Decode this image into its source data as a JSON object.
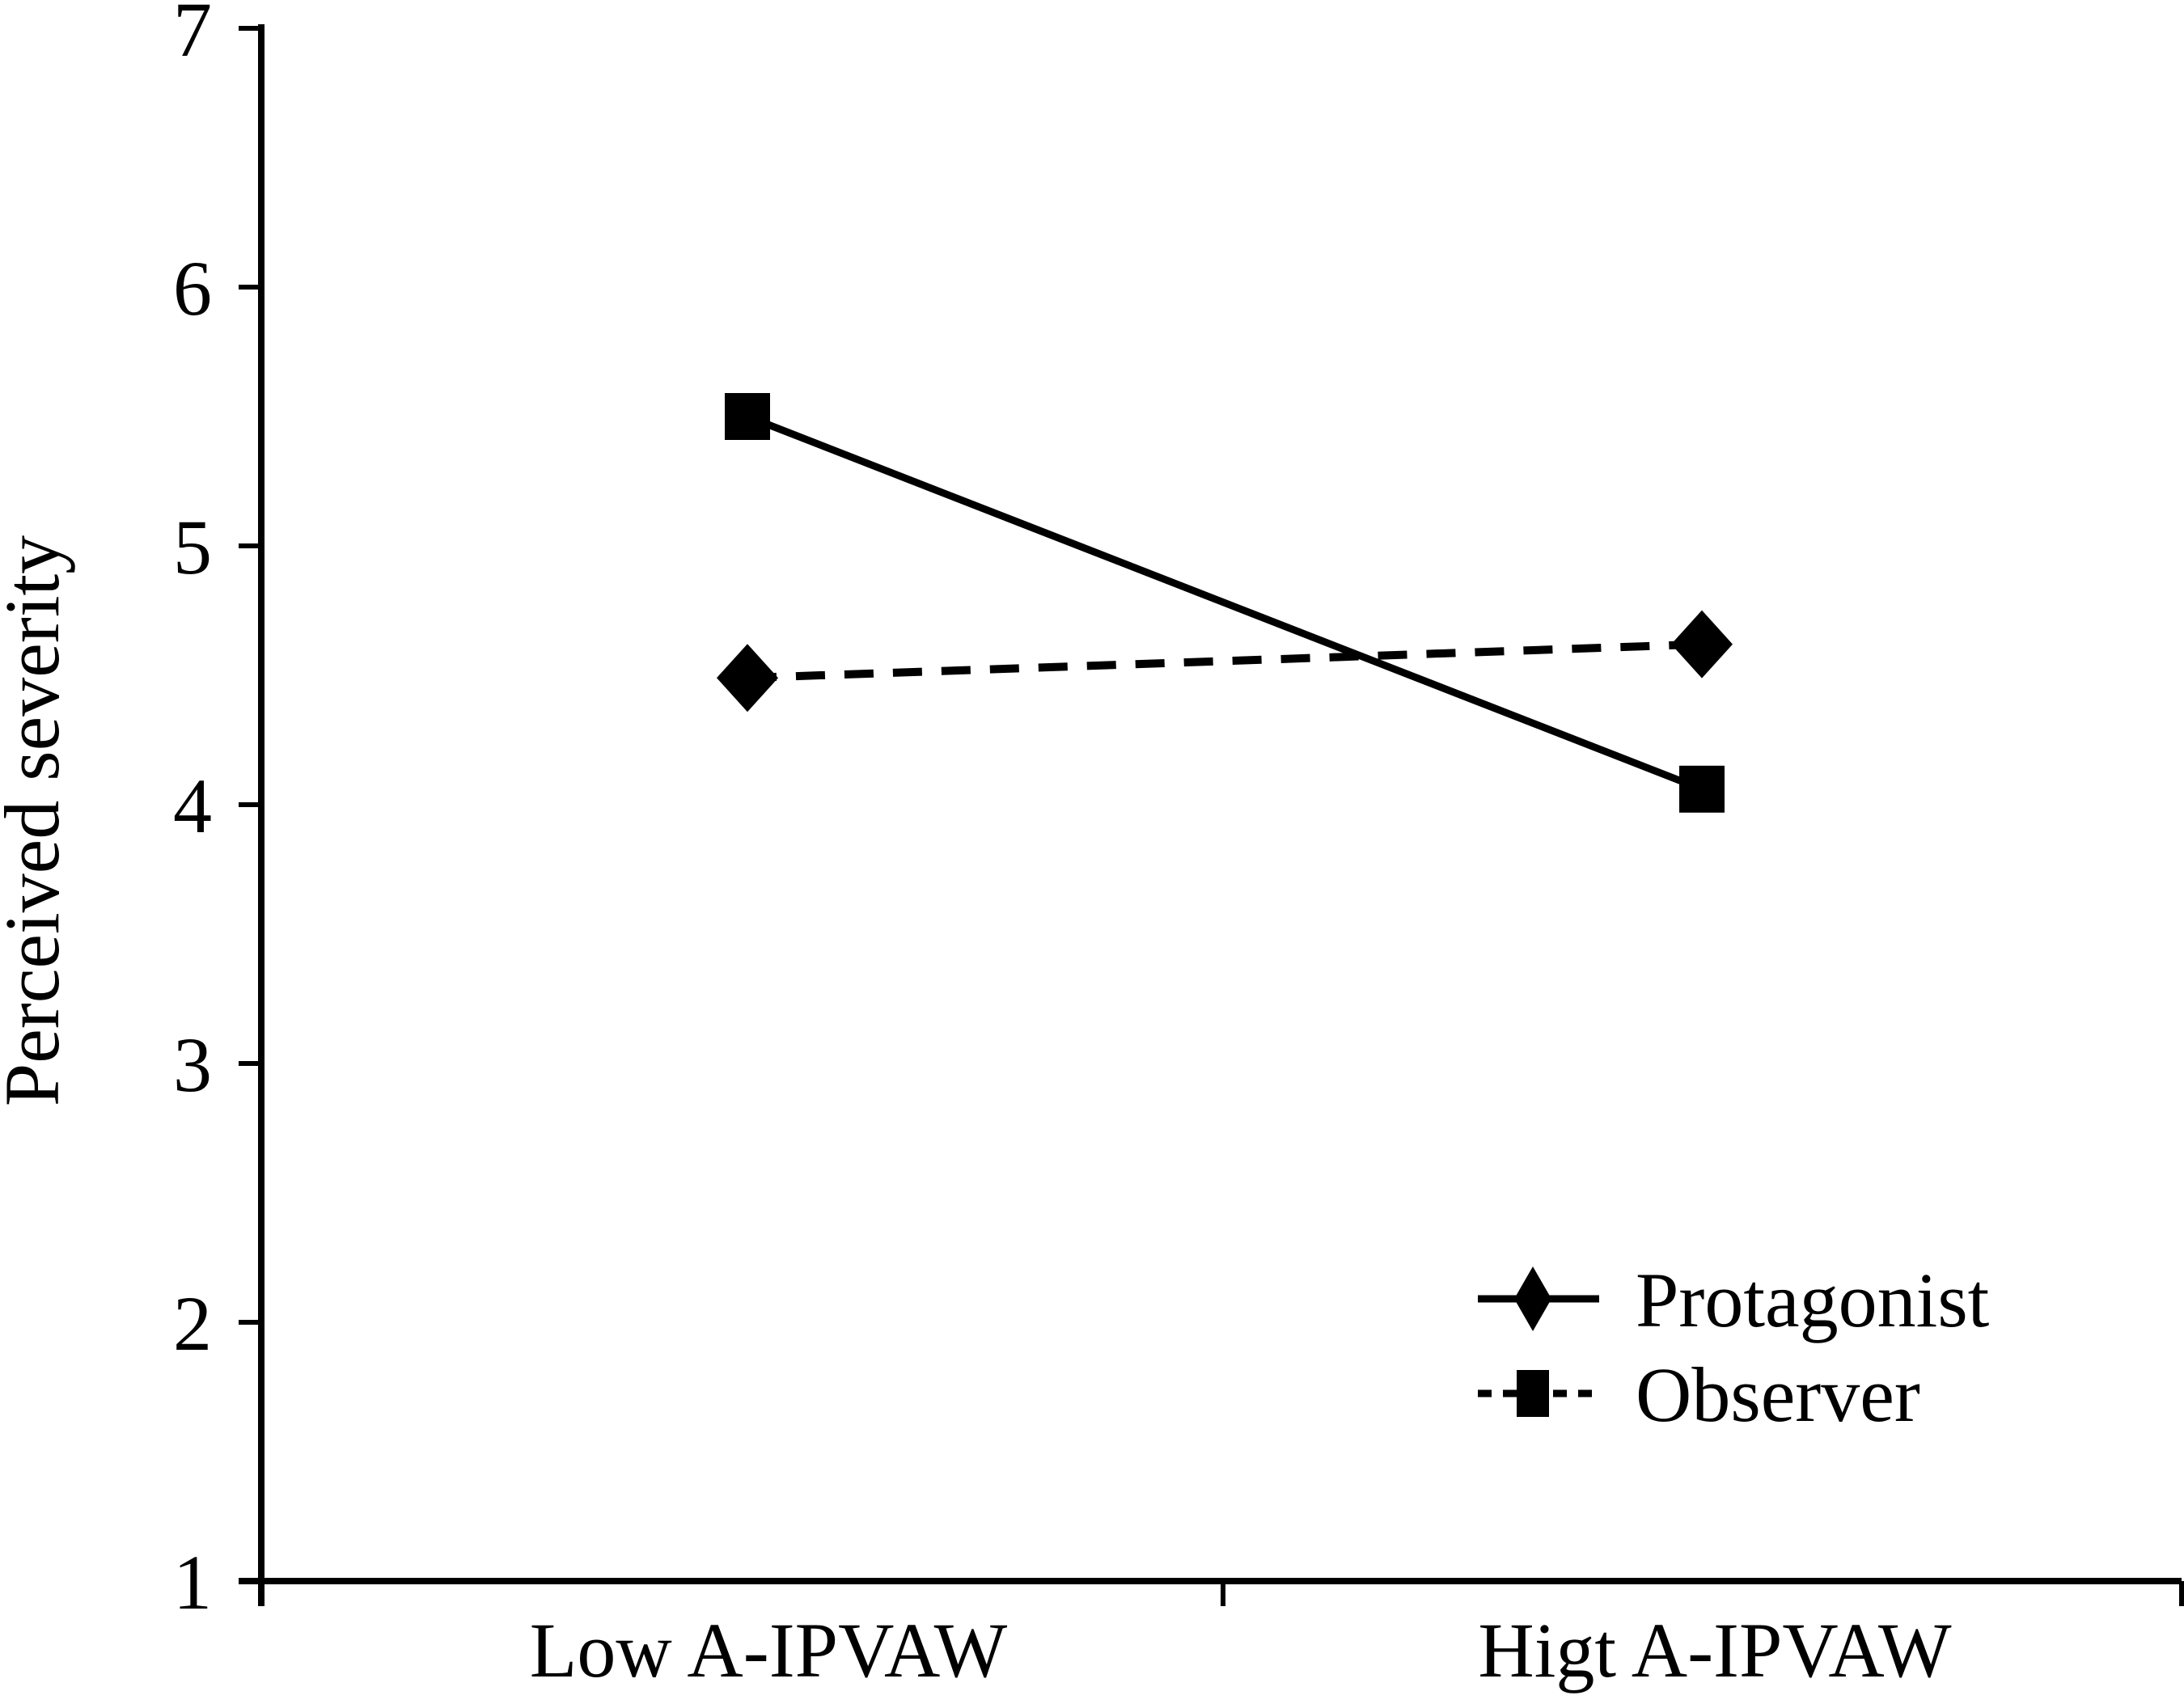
{
  "figure": {
    "background_color": "#ffffff",
    "ink_color": "#000000"
  },
  "chart_data": {
    "type": "line",
    "title": "",
    "xlabel": "",
    "ylabel": "Perceived severity",
    "categories": [
      "Low A-IPVAW",
      "Higt A-IPVAW"
    ],
    "ylim": [
      1,
      7
    ],
    "yticks": [
      1,
      2,
      3,
      4,
      5,
      6,
      7
    ],
    "grid": false,
    "legend_position": "lower-right",
    "series": [
      {
        "name": "Protagonist",
        "line_style": "solid",
        "legend_marker": "diamond",
        "plot_marker": "square",
        "values": [
          5.5,
          4.06
        ]
      },
      {
        "name": "Observer",
        "line_style": "dashed",
        "legend_marker": "square",
        "plot_marker": "diamond",
        "values": [
          4.49,
          4.62
        ]
      }
    ],
    "annotation_note": "As printed in the source figure, the solid plotted line carries square markers and the dashed plotted line carries diamond markers, while the legend swatches show a diamond on the solid line (Protagonist) and a square on the dashed line (Observer)."
  }
}
